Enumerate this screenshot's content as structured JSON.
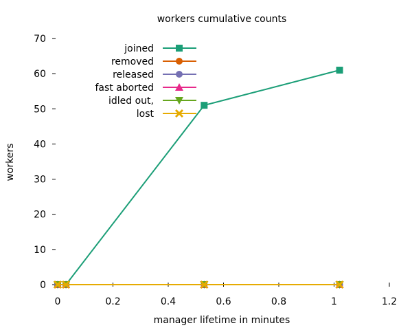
{
  "chart_data": {
    "type": "line",
    "title": "workers cumulative counts",
    "xlabel": "manager lifetime in minutes",
    "ylabel": "workers",
    "xlim": [
      0,
      1.2
    ],
    "ylim": [
      0,
      70
    ],
    "x_ticks": [
      "0",
      "0.2",
      "0.4",
      "0.6",
      "0.8",
      "1",
      "1.2"
    ],
    "y_ticks": [
      "0",
      "10",
      "20",
      "30",
      "40",
      "50",
      "60",
      "70"
    ],
    "grid": false,
    "legend_position": "top-left",
    "series": [
      {
        "name": "joined",
        "color": "#1b9e77",
        "marker": "square",
        "x": [
          0,
          0.03,
          0.53,
          1.02
        ],
        "y": [
          0,
          0,
          51,
          61
        ]
      },
      {
        "name": "removed",
        "color": "#d95f02",
        "marker": "circle",
        "x": [
          0,
          0.03,
          0.53,
          1.02
        ],
        "y": [
          0,
          0,
          0,
          0
        ]
      },
      {
        "name": "released",
        "color": "#7570b3",
        "marker": "circle",
        "x": [
          0,
          0.03,
          0.53,
          1.02
        ],
        "y": [
          0,
          0,
          0,
          0
        ]
      },
      {
        "name": "fast aborted",
        "color": "#e7298a",
        "marker": "triangle-up",
        "x": [
          0,
          0.03,
          0.53,
          1.02
        ],
        "y": [
          0,
          0,
          0,
          0
        ]
      },
      {
        "name": "idled out,",
        "color": "#66a61e",
        "marker": "triangle-down",
        "x": [
          0,
          0.03,
          0.53,
          1.02
        ],
        "y": [
          0,
          0,
          0,
          0
        ]
      },
      {
        "name": "lost",
        "color": "#e6ab02",
        "marker": "cross",
        "x": [
          0,
          0.03,
          0.53,
          1.02
        ],
        "y": [
          0,
          0,
          0,
          0
        ]
      }
    ]
  }
}
